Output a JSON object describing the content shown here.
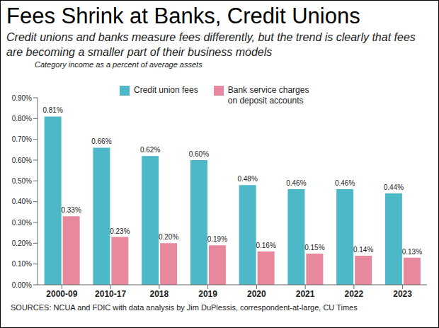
{
  "chart_data": {
    "type": "bar",
    "title": "Fees Shrink at Banks, Credit Unions",
    "subtitle": "Credit unions and banks measure fees differently, but the trend is clearly that fees are becoming a smaller part of their business models",
    "y_label": "Category income as a percent of average assets",
    "source": "SOURCES: NCUA and FDIC with data analysis by Jim DuPlessis, correspondent-at-large, CU Times",
    "categories": [
      "2000-09",
      "2010-17",
      "2018",
      "2019",
      "2020",
      "2021",
      "2022",
      "2023"
    ],
    "series": [
      {
        "name": "Credit union fees",
        "color": "#4cb8c8",
        "values": [
          0.81,
          0.66,
          0.62,
          0.6,
          0.48,
          0.46,
          0.46,
          0.44
        ],
        "value_labels": [
          "0.81%",
          "0.66%",
          "0.62%",
          "0.60%",
          "0.48%",
          "0.46%",
          "0.46%",
          "0.44%"
        ]
      },
      {
        "name": "Bank service charges on deposit accounts",
        "color": "#e8889c",
        "values": [
          0.33,
          0.23,
          0.2,
          0.19,
          0.16,
          0.15,
          0.14,
          0.13
        ],
        "value_labels": [
          "0.33%",
          "0.23%",
          "0.20%",
          "0.19%",
          "0.16%",
          "0.15%",
          "0.14%",
          "0.13%"
        ]
      }
    ],
    "ylim": [
      0,
      0.9
    ],
    "yticks": [
      {
        "value": 0,
        "label": "0.00%"
      },
      {
        "value": 0.1,
        "label": "0.10%"
      },
      {
        "value": 0.2,
        "label": "0.20%"
      },
      {
        "value": 0.3,
        "label": "0.30%"
      },
      {
        "value": 0.4,
        "label": "0.40%"
      },
      {
        "value": 0.5,
        "label": "0.50%"
      },
      {
        "value": 0.6,
        "label": "0.60%"
      },
      {
        "value": 0.7,
        "label": "0.70%"
      },
      {
        "value": 0.8,
        "label": "0.80%"
      },
      {
        "value": 0.9,
        "label": "0.90%"
      }
    ],
    "grid": false,
    "legend": "top",
    "data_labels": true
  }
}
